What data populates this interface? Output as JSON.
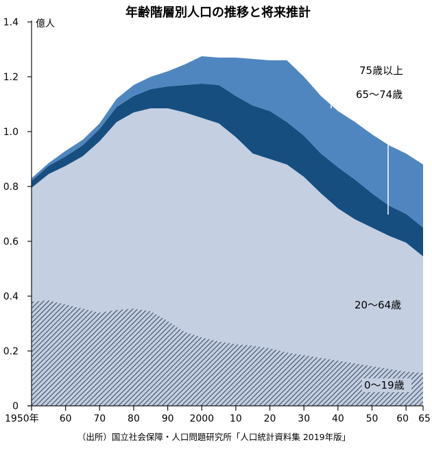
{
  "chart_data": {
    "type": "area",
    "stacked": true,
    "title": "年齢階層別人口の推移と将来推計",
    "ylabel": "億人",
    "ylim": [
      0,
      1.4
    ],
    "yticks": [
      0,
      0.2,
      0.4,
      0.6,
      0.8,
      1.0,
      1.2,
      1.4
    ],
    "ytick_labels": [
      "0",
      "0.2",
      "0.4",
      "0.6",
      "0.8",
      "1.0",
      "1.2",
      "1.4"
    ],
    "xlim": [
      1950,
      2065
    ],
    "xticks": [
      1950,
      1960,
      1970,
      1980,
      1990,
      2000,
      2010,
      2020,
      2030,
      2040,
      2050,
      2060,
      2065
    ],
    "xtick_labels": [
      "1950年",
      "60",
      "70",
      "80",
      "90",
      "2000",
      "10",
      "20",
      "30",
      "40",
      "50",
      "60",
      "65"
    ],
    "x": [
      1950,
      1955,
      1960,
      1965,
      1970,
      1975,
      1980,
      1985,
      1990,
      1995,
      2000,
      2005,
      2010,
      2015,
      2020,
      2025,
      2030,
      2035,
      2040,
      2045,
      2050,
      2055,
      2060,
      2065
    ],
    "series": [
      {
        "name": "0〜19歳",
        "color": "#4e5e74",
        "hatched": true,
        "values": [
          0.38,
          0.385,
          0.37,
          0.355,
          0.34,
          0.35,
          0.355,
          0.345,
          0.31,
          0.27,
          0.25,
          0.235,
          0.225,
          0.22,
          0.21,
          0.195,
          0.185,
          0.175,
          0.165,
          0.155,
          0.145,
          0.135,
          0.125,
          0.12
        ]
      },
      {
        "name": "20〜64歳",
        "color": "#c4cfe2",
        "values": [
          0.415,
          0.46,
          0.505,
          0.555,
          0.625,
          0.685,
          0.715,
          0.74,
          0.775,
          0.8,
          0.8,
          0.795,
          0.755,
          0.7,
          0.69,
          0.685,
          0.65,
          0.6,
          0.555,
          0.525,
          0.505,
          0.485,
          0.47,
          0.425
        ]
      },
      {
        "name": "65〜74歳",
        "color": "#174e80",
        "values": [
          0.025,
          0.03,
          0.035,
          0.04,
          0.045,
          0.055,
          0.06,
          0.07,
          0.08,
          0.1,
          0.125,
          0.14,
          0.15,
          0.175,
          0.175,
          0.155,
          0.15,
          0.145,
          0.15,
          0.145,
          0.125,
          0.11,
          0.105,
          0.105
        ]
      },
      {
        "name": "75歳以上",
        "color": "#4f86c0",
        "values": [
          0.01,
          0.01,
          0.02,
          0.02,
          0.02,
          0.03,
          0.04,
          0.045,
          0.055,
          0.075,
          0.1,
          0.1,
          0.14,
          0.17,
          0.185,
          0.225,
          0.215,
          0.21,
          0.205,
          0.21,
          0.215,
          0.22,
          0.22,
          0.23
        ]
      }
    ],
    "source": "（出所）国立社会保障・人口問題研究所「人口統計資料集 2019年版」"
  }
}
